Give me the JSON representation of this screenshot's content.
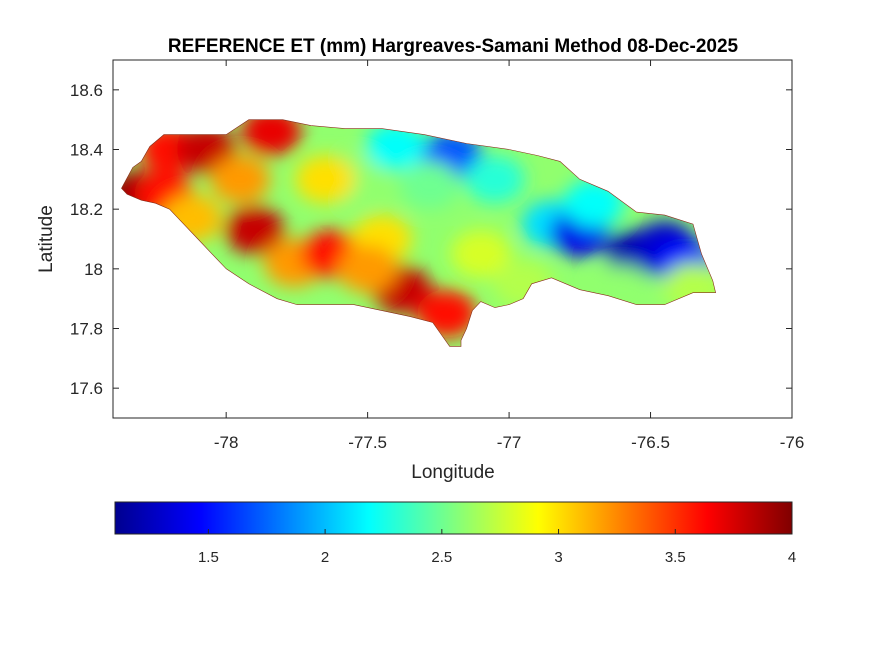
{
  "chart_data": {
    "type": "heatmap",
    "title": "REFERENCE ET (mm) Hargreaves-Samani Method  08-Dec-2025",
    "xlabel": "Longitude",
    "ylabel": "Latitude",
    "xlim": [
      -78.4,
      -76
    ],
    "ylim": [
      17.5,
      18.7
    ],
    "xticks": [
      -78,
      -77.5,
      -77,
      -76.5,
      -76
    ],
    "xtick_labels": [
      "-78",
      "-77.5",
      "-77",
      "-76.5",
      "-76"
    ],
    "yticks": [
      17.6,
      17.8,
      18,
      18.2,
      18.4,
      18.6
    ],
    "ytick_labels": [
      "17.6",
      "17.8",
      "18",
      "18.2",
      "18.4",
      "18.6"
    ],
    "grid": false,
    "colormap": "jet",
    "colorbar": {
      "location": "below",
      "range": [
        1.1,
        4.0
      ],
      "ticks": [
        1.5,
        2,
        2.5,
        3,
        3.5,
        4
      ],
      "tick_labels": [
        "1.5",
        "2",
        "2.5",
        "3",
        "3.5",
        "4"
      ]
    },
    "region_outline": [
      [
        -78.37,
        18.27
      ],
      [
        -78.33,
        18.34
      ],
      [
        -78.3,
        18.36
      ],
      [
        -78.27,
        18.41
      ],
      [
        -78.22,
        18.45
      ],
      [
        -78.1,
        18.45
      ],
      [
        -78.0,
        18.45
      ],
      [
        -77.92,
        18.5
      ],
      [
        -77.8,
        18.5
      ],
      [
        -77.7,
        18.48
      ],
      [
        -77.58,
        18.47
      ],
      [
        -77.45,
        18.47
      ],
      [
        -77.3,
        18.45
      ],
      [
        -77.15,
        18.42
      ],
      [
        -77.0,
        18.4
      ],
      [
        -76.9,
        18.38
      ],
      [
        -76.82,
        18.36
      ],
      [
        -76.75,
        18.3
      ],
      [
        -76.65,
        18.26
      ],
      [
        -76.55,
        18.19
      ],
      [
        -76.45,
        18.18
      ],
      [
        -76.35,
        18.15
      ],
      [
        -76.32,
        18.05
      ],
      [
        -76.28,
        17.96
      ],
      [
        -76.27,
        17.92
      ],
      [
        -76.35,
        17.92
      ],
      [
        -76.45,
        17.88
      ],
      [
        -76.55,
        17.88
      ],
      [
        -76.65,
        17.91
      ],
      [
        -76.75,
        17.93
      ],
      [
        -76.85,
        17.97
      ],
      [
        -76.92,
        17.95
      ],
      [
        -76.95,
        17.9
      ],
      [
        -77.0,
        17.88
      ],
      [
        -77.05,
        17.87
      ],
      [
        -77.1,
        17.89
      ],
      [
        -77.13,
        17.86
      ],
      [
        -77.15,
        17.8
      ],
      [
        -77.17,
        17.76
      ],
      [
        -77.17,
        17.74
      ],
      [
        -77.21,
        17.74
      ],
      [
        -77.24,
        17.78
      ],
      [
        -77.27,
        17.82
      ],
      [
        -77.35,
        17.84
      ],
      [
        -77.45,
        17.86
      ],
      [
        -77.55,
        17.88
      ],
      [
        -77.65,
        17.88
      ],
      [
        -77.75,
        17.88
      ],
      [
        -77.82,
        17.9
      ],
      [
        -77.92,
        17.95
      ],
      [
        -78.0,
        18.0
      ],
      [
        -78.05,
        18.05
      ],
      [
        -78.1,
        18.1
      ],
      [
        -78.15,
        18.15
      ],
      [
        -78.2,
        18.2
      ],
      [
        -78.25,
        18.22
      ],
      [
        -78.3,
        18.23
      ],
      [
        -78.35,
        18.25
      ]
    ],
    "value_centers": [
      {
        "lon": -78.32,
        "lat": 18.25,
        "value": 3.95
      },
      {
        "lon": -78.22,
        "lat": 18.25,
        "value": 3.6
      },
      {
        "lon": -78.2,
        "lat": 18.4,
        "value": 3.6
      },
      {
        "lon": -78.07,
        "lat": 18.4,
        "value": 3.8
      },
      {
        "lon": -78.12,
        "lat": 18.17,
        "value": 3.1
      },
      {
        "lon": -77.95,
        "lat": 18.3,
        "value": 3.2
      },
      {
        "lon": -77.9,
        "lat": 18.13,
        "value": 3.8
      },
      {
        "lon": -77.84,
        "lat": 18.46,
        "value": 3.7
      },
      {
        "lon": -77.76,
        "lat": 18.02,
        "value": 3.2
      },
      {
        "lon": -77.63,
        "lat": 18.05,
        "value": 3.6
      },
      {
        "lon": -77.55,
        "lat": 18.3,
        "value": 2.6
      },
      {
        "lon": -77.65,
        "lat": 18.3,
        "value": 3.0
      },
      {
        "lon": -77.45,
        "lat": 18.1,
        "value": 3.0
      },
      {
        "lon": -77.38,
        "lat": 17.93,
        "value": 3.8
      },
      {
        "lon": -77.22,
        "lat": 17.85,
        "value": 3.6
      },
      {
        "lon": -77.5,
        "lat": 18.0,
        "value": 3.2
      },
      {
        "lon": -77.4,
        "lat": 18.41,
        "value": 2.2
      },
      {
        "lon": -77.2,
        "lat": 18.38,
        "value": 1.7
      },
      {
        "lon": -77.28,
        "lat": 18.28,
        "value": 2.5
      },
      {
        "lon": -77.05,
        "lat": 18.3,
        "value": 2.3
      },
      {
        "lon": -77.1,
        "lat": 18.05,
        "value": 2.8
      },
      {
        "lon": -76.95,
        "lat": 17.95,
        "value": 2.7
      },
      {
        "lon": -76.85,
        "lat": 18.15,
        "value": 2.1
      },
      {
        "lon": -76.75,
        "lat": 18.12,
        "value": 1.4
      },
      {
        "lon": -76.55,
        "lat": 18.05,
        "value": 1.2
      },
      {
        "lon": -76.45,
        "lat": 18.08,
        "value": 1.3
      },
      {
        "lon": -76.38,
        "lat": 18.02,
        "value": 1.5
      },
      {
        "lon": -76.6,
        "lat": 17.93,
        "value": 2.6
      },
      {
        "lon": -76.35,
        "lat": 17.94,
        "value": 2.7
      },
      {
        "lon": -76.7,
        "lat": 18.22,
        "value": 2.2
      }
    ]
  }
}
